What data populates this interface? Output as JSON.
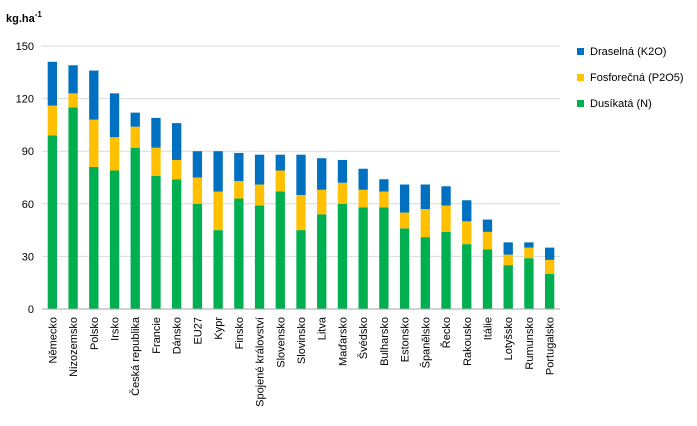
{
  "chart_data": {
    "type": "bar",
    "stacked": true,
    "ylabel": "kg.ha",
    "ylabel_superscript": "-1",
    "ylim": [
      0,
      150
    ],
    "yticks": [
      "0",
      "30",
      "60",
      "90",
      "120",
      "150"
    ],
    "grid": "horizontal",
    "legend_position": "top-right",
    "categories": [
      "Německo",
      "Nizozemsko",
      "Polsko",
      "Irsko",
      "Česká republika",
      "Francie",
      "Dánsko",
      "EU27",
      "Kypr",
      "Finsko",
      "Spojené království",
      "Slovensko",
      "Slovinsko",
      "Litva",
      "Maďarsko",
      "Švédsko",
      "Bulharsko",
      "Estonsko",
      "Španělsko",
      "Řecko",
      "Rakousko",
      "Itálie",
      "Lotyšsko",
      "Rumunsko",
      "Portugalsko"
    ],
    "series": [
      {
        "name": "Dusíkatá (N)",
        "color": "#00b050",
        "values": [
          99,
          115,
          81,
          79,
          92,
          76,
          74,
          60,
          45,
          63,
          59,
          67,
          45,
          54,
          60,
          58,
          58,
          46,
          41,
          44,
          37,
          34,
          25,
          29,
          20
        ]
      },
      {
        "name": "Fosforečná (P2O5)",
        "color": "#ffc000",
        "values": [
          17,
          8,
          27,
          19,
          12,
          16,
          11,
          15,
          22,
          10,
          12,
          12,
          20,
          14,
          12,
          10,
          9,
          9,
          16,
          15,
          13,
          10,
          6,
          6,
          8
        ]
      },
      {
        "name": "Draselná (K2O)",
        "color": "#0070c0",
        "values": [
          25,
          16,
          28,
          25,
          8,
          17,
          21,
          15,
          23,
          16,
          17,
          9,
          23,
          18,
          13,
          12,
          7,
          16,
          14,
          11,
          12,
          7,
          7,
          3,
          7
        ]
      }
    ]
  }
}
